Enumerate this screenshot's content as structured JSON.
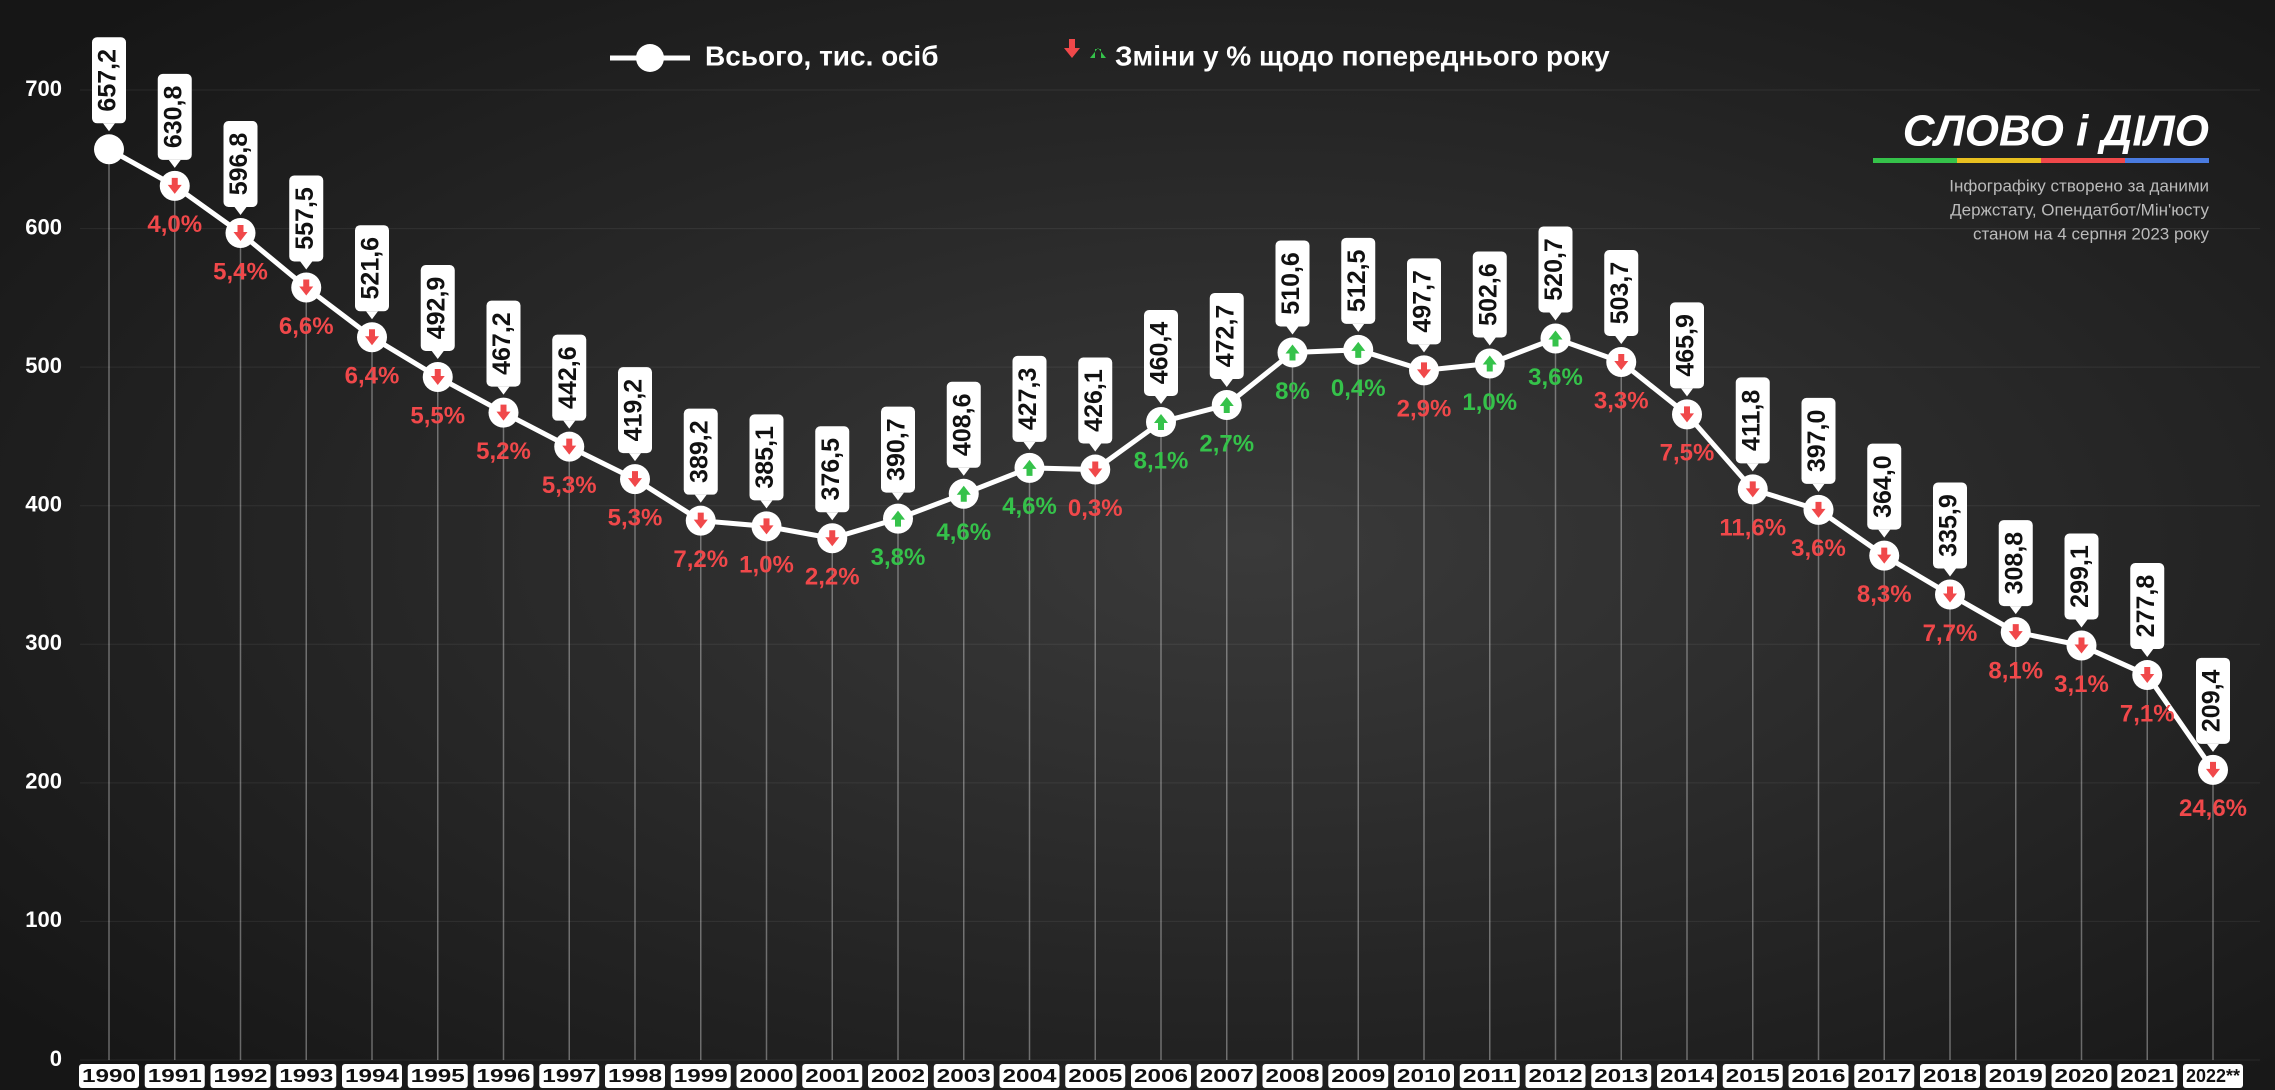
{
  "chart_data": {
    "type": "line",
    "categories": [
      "1990",
      "1991",
      "1992",
      "1993",
      "1994",
      "1995",
      "1996",
      "1997",
      "1998",
      "1999",
      "2000",
      "2001",
      "2002",
      "2003",
      "2004",
      "2005",
      "2006",
      "2007",
      "2008",
      "2009",
      "2010",
      "2011",
      "2012",
      "2013",
      "2014",
      "2015",
      "2016",
      "2017",
      "2018",
      "2019",
      "2020",
      "2021",
      "2022**"
    ],
    "series": [
      {
        "name": "Всього, тис. осіб",
        "color": "#ffffff",
        "values": [
          657.2,
          630.8,
          596.8,
          557.5,
          521.6,
          492.9,
          467.2,
          442.6,
          419.2,
          389.2,
          385.1,
          376.5,
          390.7,
          408.6,
          427.3,
          426.1,
          460.4,
          472.7,
          510.6,
          512.5,
          497.7,
          502.6,
          520.7,
          503.7,
          465.9,
          411.8,
          397.0,
          364.0,
          335.9,
          308.8,
          299.1,
          277.8,
          209.4
        ],
        "value_labels": [
          "657,2",
          "630,8",
          "596,8",
          "557,5",
          "521,6",
          "492,9",
          "467,2",
          "442,6",
          "419,2",
          "389,2",
          "385,1",
          "376,5",
          "390,7",
          "408,6",
          "427,3",
          "426,1",
          "460,4",
          "472,7",
          "510,6",
          "512,5",
          "497,7",
          "502,6",
          "520,7",
          "503,7",
          "465,9",
          "411,8",
          "397,0",
          "364,0",
          "335,9",
          "308,8",
          "299,1",
          "277,8",
          "209,4"
        ]
      }
    ],
    "changes": {
      "name": "Зміни у % щодо попереднього року",
      "up_color": "#35c24a",
      "down_color": "#f0484a",
      "values": [
        null,
        4.0,
        5.4,
        6.6,
        6.4,
        5.5,
        5.2,
        5.3,
        5.3,
        7.2,
        1.0,
        2.2,
        3.8,
        4.6,
        4.6,
        0.3,
        8.1,
        2.7,
        8,
        0.4,
        2.9,
        1.0,
        3.6,
        3.3,
        7.5,
        11.6,
        3.6,
        8.3,
        7.7,
        8.1,
        3.1,
        7.1,
        24.6
      ],
      "value_labels": [
        null,
        "4,0%",
        "5,4%",
        "6,6%",
        "6,4%",
        "5,5%",
        "5,2%",
        "5,3%",
        "5,3%",
        "7,2%",
        "1,0%",
        "2,2%",
        "3,8%",
        "4,6%",
        "4,6%",
        "0,3%",
        "8,1%",
        "2,7%",
        "8%",
        "0,4%",
        "2,9%",
        "1,0%",
        "3,6%",
        "3,3%",
        "7,5%",
        "11,6%",
        "3,6%",
        "8,3%",
        "7,7%",
        "8,1%",
        "3,1%",
        "7,1%",
        "24,6%"
      ],
      "direction": [
        null,
        "down",
        "down",
        "down",
        "down",
        "down",
        "down",
        "down",
        "down",
        "down",
        "down",
        "down",
        "up",
        "up",
        "up",
        "down",
        "up",
        "up",
        "up",
        "up",
        "down",
        "up",
        "up",
        "down",
        "down",
        "down",
        "down",
        "down",
        "down",
        "down",
        "down",
        "down",
        "down"
      ]
    },
    "ylim": [
      0,
      700
    ],
    "yticks": [
      0,
      100,
      200,
      300,
      400,
      500,
      600,
      700
    ],
    "grid": true
  },
  "branding": {
    "logo": "СЛОВО і ДІЛО",
    "note": [
      "Інфографіку створено за даними",
      "Держстату, Опендатбот/Мін'юсту",
      "станом на 4 серпня 2023 року"
    ]
  }
}
